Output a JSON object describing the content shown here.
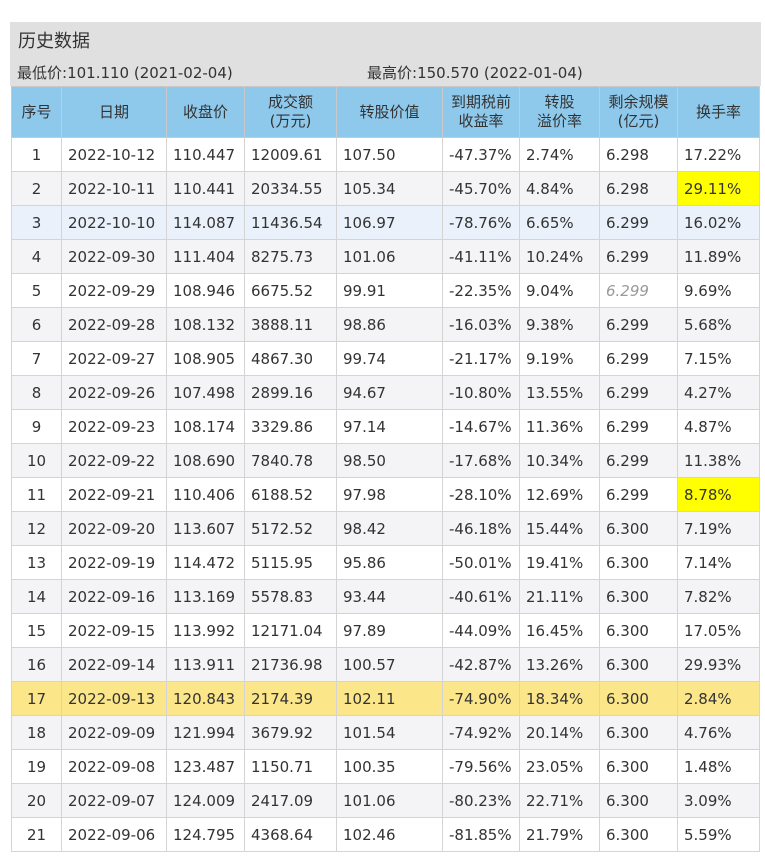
{
  "panel": {
    "title": "历史数据",
    "low_label": "最低价:",
    "low_value": "101.110 (2021-02-04)",
    "high_label": "最高价:",
    "high_value": "150.570 (2022-01-04)"
  },
  "columns": [
    [
      "序号"
    ],
    [
      "日期"
    ],
    [
      "收盘价"
    ],
    [
      "成交额",
      "(万元)"
    ],
    [
      "转股价值"
    ],
    [
      "到期税前",
      "收益率"
    ],
    [
      "转股",
      "溢价率"
    ],
    [
      "剩余规模",
      "(亿元)"
    ],
    [
      "换手率"
    ]
  ],
  "rows": [
    [
      "1",
      "2022-10-12",
      "110.447",
      "12009.61",
      "107.50",
      "-47.37%",
      "2.74%",
      "6.298",
      "17.22%"
    ],
    [
      "2",
      "2022-10-11",
      "110.441",
      "20334.55",
      "105.34",
      "-45.70%",
      "4.84%",
      "6.298",
      "29.11%"
    ],
    [
      "3",
      "2022-10-10",
      "114.087",
      "11436.54",
      "106.97",
      "-78.76%",
      "6.65%",
      "6.299",
      "16.02%"
    ],
    [
      "4",
      "2022-09-30",
      "111.404",
      "8275.73",
      "101.06",
      "-41.11%",
      "10.24%",
      "6.299",
      "11.89%"
    ],
    [
      "5",
      "2022-09-29",
      "108.946",
      "6675.52",
      "99.91",
      "-22.35%",
      "9.04%",
      "6.299",
      "9.69%"
    ],
    [
      "6",
      "2022-09-28",
      "108.132",
      "3888.11",
      "98.86",
      "-16.03%",
      "9.38%",
      "6.299",
      "5.68%"
    ],
    [
      "7",
      "2022-09-27",
      "108.905",
      "4867.30",
      "99.74",
      "-21.17%",
      "9.19%",
      "6.299",
      "7.15%"
    ],
    [
      "8",
      "2022-09-26",
      "107.498",
      "2899.16",
      "94.67",
      "-10.80%",
      "13.55%",
      "6.299",
      "4.27%"
    ],
    [
      "9",
      "2022-09-23",
      "108.174",
      "3329.86",
      "97.14",
      "-14.67%",
      "11.36%",
      "6.299",
      "4.87%"
    ],
    [
      "10",
      "2022-09-22",
      "108.690",
      "7840.78",
      "98.50",
      "-17.68%",
      "10.34%",
      "6.299",
      "11.38%"
    ],
    [
      "11",
      "2022-09-21",
      "110.406",
      "6188.52",
      "97.98",
      "-28.10%",
      "12.69%",
      "6.299",
      "8.78%"
    ],
    [
      "12",
      "2022-09-20",
      "113.607",
      "5172.52",
      "98.42",
      "-46.18%",
      "15.44%",
      "6.300",
      "7.19%"
    ],
    [
      "13",
      "2022-09-19",
      "114.472",
      "5115.95",
      "95.86",
      "-50.01%",
      "19.41%",
      "6.300",
      "7.14%"
    ],
    [
      "14",
      "2022-09-16",
      "113.169",
      "5578.83",
      "93.44",
      "-40.61%",
      "21.11%",
      "6.300",
      "7.82%"
    ],
    [
      "15",
      "2022-09-15",
      "113.992",
      "12171.04",
      "97.89",
      "-44.09%",
      "16.45%",
      "6.300",
      "17.05%"
    ],
    [
      "16",
      "2022-09-14",
      "113.911",
      "21736.98",
      "100.57",
      "-42.87%",
      "13.26%",
      "6.300",
      "29.93%"
    ],
    [
      "17",
      "2022-09-13",
      "120.843",
      "2174.39",
      "102.11",
      "-74.90%",
      "18.34%",
      "6.300",
      "2.84%"
    ],
    [
      "18",
      "2022-09-09",
      "121.994",
      "3679.92",
      "101.54",
      "-74.92%",
      "20.14%",
      "6.300",
      "4.76%"
    ],
    [
      "19",
      "2022-09-08",
      "123.487",
      "1150.71",
      "100.35",
      "-79.56%",
      "23.05%",
      "6.300",
      "1.48%"
    ],
    [
      "20",
      "2022-09-07",
      "124.009",
      "2417.09",
      "101.06",
      "-80.23%",
      "22.71%",
      "6.300",
      "3.09%"
    ],
    [
      "21",
      "2022-09-06",
      "124.795",
      "4368.64",
      "102.46",
      "-81.85%",
      "21.79%",
      "6.300",
      "5.59%"
    ]
  ],
  "styles": {
    "selected_row": 3,
    "highlight_row": 17,
    "yellow_cells": [
      [
        2,
        8
      ],
      [
        11,
        8
      ]
    ],
    "italic_cells": [
      [
        5,
        7
      ]
    ],
    "highlight_color": "#fbe68a",
    "cell_yellow": "#ffff00",
    "header_color": "#8ec9ec"
  }
}
